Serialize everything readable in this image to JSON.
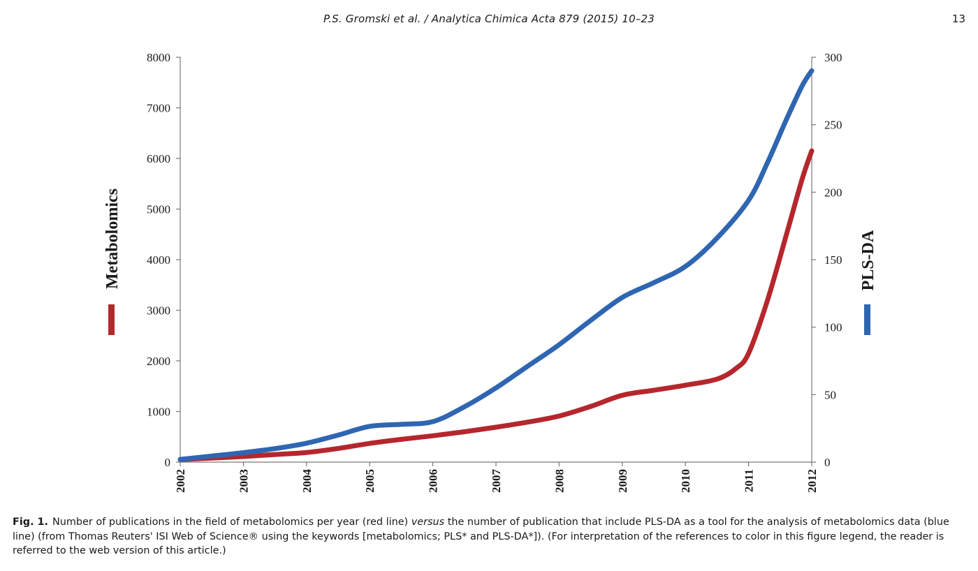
{
  "header": {
    "title": "P.S. Gromski et al. / Analytica Chimica Acta 879 (2015) 10–23",
    "page_number": "13"
  },
  "caption": {
    "label": "Fig. 1.",
    "text_before_italic": "Number of publications in the field of metabolomics per year (red line) ",
    "italic": "versus",
    "text_after_italic": " the number of publication that include PLS-DA as a tool for the analysis of metabolomics data (blue line) (from Thomas Reuters' ISI Web of Science® using the keywords [metabolomics; PLS* and PLS-DA*]). (For interpretation of the references to color in this figure legend, the reader is referred to the web version of this article.)"
  },
  "chart_data": {
    "type": "line",
    "x": [
      "2002",
      "2003",
      "2004",
      "2005",
      "2006",
      "2007",
      "2008",
      "2009",
      "2010",
      "2011",
      "2012"
    ],
    "xlim": [
      2002,
      2012
    ],
    "grid": false,
    "legend": "none",
    "y_left": {
      "label": "Metabolomics",
      "ylim": [
        0,
        8000
      ],
      "ticks": [
        "0",
        "1000",
        "2000",
        "3000",
        "4000",
        "5000",
        "6000",
        "7000",
        "8000"
      ]
    },
    "y_right": {
      "label": "PLS-DA",
      "ylim": [
        0,
        300
      ],
      "ticks": [
        "0",
        "50",
        "100",
        "150",
        "200",
        "250",
        "300"
      ]
    },
    "series": [
      {
        "axis": "left",
        "color": "#b5272d",
        "points": [
          [
            2002,
            50
          ],
          [
            2002.5,
            80
          ],
          [
            2003,
            110
          ],
          [
            2003.5,
            150
          ],
          [
            2004,
            190
          ],
          [
            2004.5,
            270
          ],
          [
            2005,
            370
          ],
          [
            2005.5,
            450
          ],
          [
            2006,
            520
          ],
          [
            2006.5,
            600
          ],
          [
            2007,
            690
          ],
          [
            2007.5,
            790
          ],
          [
            2008,
            910
          ],
          [
            2008.5,
            1100
          ],
          [
            2009,
            1320
          ],
          [
            2009.5,
            1420
          ],
          [
            2010,
            1520
          ],
          [
            2010.5,
            1640
          ],
          [
            2010.8,
            1850
          ],
          [
            2011,
            2150
          ],
          [
            2011.3,
            3200
          ],
          [
            2011.6,
            4500
          ],
          [
            2011.85,
            5600
          ],
          [
            2012,
            6150
          ]
        ]
      },
      {
        "axis": "right",
        "color": "#2f66b2",
        "points": [
          [
            2002,
            2
          ],
          [
            2002.5,
            4.5
          ],
          [
            2003,
            7
          ],
          [
            2003.5,
            10
          ],
          [
            2004,
            14
          ],
          [
            2004.5,
            20
          ],
          [
            2005,
            26.5
          ],
          [
            2005.5,
            28
          ],
          [
            2006,
            30
          ],
          [
            2006.5,
            41
          ],
          [
            2007,
            55
          ],
          [
            2007.5,
            71
          ],
          [
            2008,
            87
          ],
          [
            2008.5,
            105
          ],
          [
            2009,
            122
          ],
          [
            2009.5,
            133
          ],
          [
            2010,
            145
          ],
          [
            2010.5,
            166
          ],
          [
            2011,
            194
          ],
          [
            2011.3,
            222
          ],
          [
            2011.6,
            254
          ],
          [
            2011.85,
            279
          ],
          [
            2012,
            290
          ]
        ]
      }
    ]
  }
}
